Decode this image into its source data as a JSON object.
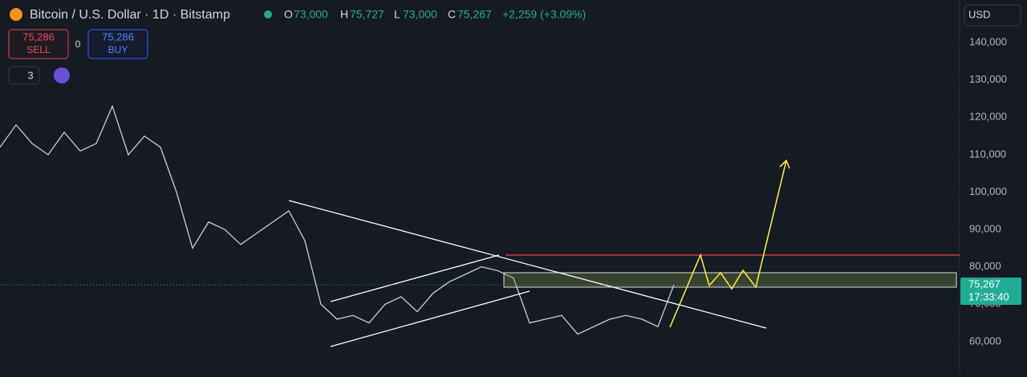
{
  "header": {
    "title": "Bitcoin / U.S. Dollar · 1D · Bitstamp",
    "open_label": "O",
    "open": "73,000",
    "high_label": "H",
    "high": "75,727",
    "low_label": "L",
    "low": "73,000",
    "close_label": "C",
    "close": "75,267",
    "change": "+2,259 (+3.09%)"
  },
  "trade": {
    "sell_price": "75,286",
    "sell": "SELL",
    "spread": "0",
    "buy_price": "75,286",
    "buy": "BUY",
    "layers": "3"
  },
  "currency": "USD",
  "price_tag": {
    "price": "75,267",
    "countdown": "17:33:40"
  },
  "chart_data": {
    "type": "line",
    "color": "#c9ccd4",
    "values": [
      112000,
      118000,
      113000,
      110000,
      116000,
      111000,
      113000,
      123000,
      110000,
      115000,
      112000,
      100000,
      85000,
      92000,
      90000,
      86000,
      89000,
      92000,
      95000,
      87000,
      70000,
      66000,
      67000,
      65000,
      70000,
      72000,
      68000,
      73000,
      76000,
      78000,
      80000,
      79000,
      77000,
      65000,
      66000,
      67000,
      62000,
      64000,
      66000,
      67000,
      66000,
      64000,
      75267
    ],
    "ylim": [
      51600,
      151400
    ],
    "yticks": [
      {
        "value": 60000,
        "label": "60,000"
      },
      {
        "value": 70000,
        "label": "70,000"
      },
      {
        "value": 80000,
        "label": "80,000"
      },
      {
        "value": 90000,
        "label": "90,000"
      },
      {
        "value": 100000,
        "label": "100,000"
      },
      {
        "value": 110000,
        "label": "110,000"
      },
      {
        "value": 120000,
        "label": "120,000"
      },
      {
        "value": 130000,
        "label": "130,000"
      },
      {
        "value": 140000,
        "label": "140,000"
      }
    ]
  }
}
